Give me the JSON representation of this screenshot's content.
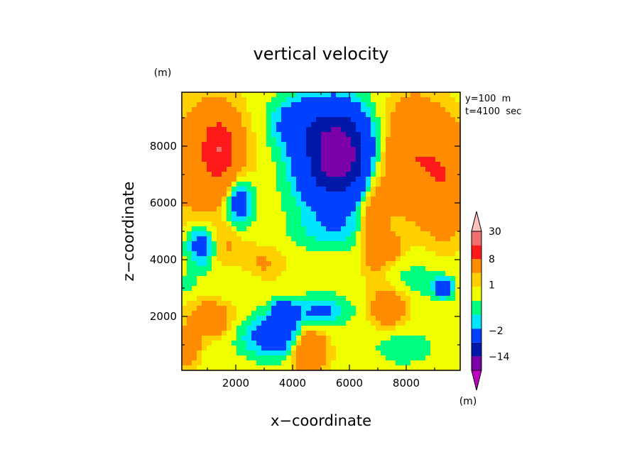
{
  "chart_data": {
    "type": "heatmap",
    "title": "vertical velocity",
    "xlabel": "x−coordinate",
    "ylabel": "z−coordinate",
    "x_unit": "(m)",
    "y_unit": "(m)",
    "xlim": [
      100,
      9900
    ],
    "ylim": [
      100,
      9900
    ],
    "x_ticks": [
      {
        "value": 2000,
        "label": "2000"
      },
      {
        "value": 4000,
        "label": "4000"
      },
      {
        "value": 6000,
        "label": "6000"
      },
      {
        "value": 8000,
        "label": "8000"
      }
    ],
    "y_ticks": [
      {
        "value": 2000,
        "label": "2000"
      },
      {
        "value": 4000,
        "label": "4000"
      },
      {
        "value": 6000,
        "label": "6000"
      },
      {
        "value": 8000,
        "label": "8000"
      }
    ],
    "annotations": [
      "y=100  m",
      "t=4100  sec"
    ],
    "colorbar": {
      "unit": "(m)",
      "levels": [
        -30,
        -14,
        -8,
        -2,
        -1,
        0,
        1,
        2,
        8,
        14,
        30
      ],
      "colors": [
        "#c000c0",
        "#7b00a8",
        "#0018a8",
        "#0040ff",
        "#00e5ff",
        "#00ff7f",
        "#f0ff00",
        "#ffd000",
        "#ff8c00",
        "#ff1a1a",
        "#f07070",
        "#ffc0c0"
      ],
      "labels": [
        {
          "value": 30,
          "label": "30"
        },
        {
          "value": 8,
          "label": "8"
        },
        {
          "value": 1,
          "label": "1"
        },
        {
          "value": -2,
          "label": "−2"
        },
        {
          "value": -14,
          "label": "−14"
        }
      ],
      "extend": "both"
    },
    "field": {
      "background": 0.5,
      "blobs": [
        {
          "x": 5600,
          "z": 7800,
          "sx": 900,
          "sz": 1300,
          "a": -17
        },
        {
          "x": 5300,
          "z": 7300,
          "sx": 1300,
          "sz": 1900,
          "a": -5
        },
        {
          "x": 4200,
          "z": 8800,
          "sx": 900,
          "sz": 900,
          "a": -4
        },
        {
          "x": 1400,
          "z": 7900,
          "sx": 600,
          "sz": 1100,
          "a": 11
        },
        {
          "x": 900,
          "z": 7400,
          "sx": 1500,
          "sz": 2200,
          "a": 3
        },
        {
          "x": 8300,
          "z": 7600,
          "sx": 900,
          "sz": 1800,
          "a": 7
        },
        {
          "x": 9400,
          "z": 6800,
          "sx": 700,
          "sz": 1800,
          "a": 6
        },
        {
          "x": 6900,
          "z": 5300,
          "sx": 500,
          "sz": 1700,
          "a": 4
        },
        {
          "x": 7300,
          "z": 4400,
          "sx": 500,
          "sz": 400,
          "a": 5
        },
        {
          "x": 4600,
          "z": 800,
          "sx": 550,
          "sz": 700,
          "a": 7
        },
        {
          "x": 1100,
          "z": 1900,
          "sx": 700,
          "sz": 600,
          "a": 4
        },
        {
          "x": 7400,
          "z": 2300,
          "sx": 600,
          "sz": 600,
          "a": 4
        },
        {
          "x": 300,
          "z": 900,
          "sx": 400,
          "sz": 600,
          "a": 4
        },
        {
          "x": 3000,
          "z": 3800,
          "sx": 700,
          "sz": 600,
          "a": 1.8
        },
        {
          "x": 3400,
          "z": 1300,
          "sx": 1100,
          "sz": 700,
          "a": -4.5
        },
        {
          "x": 5000,
          "z": 2200,
          "sx": 900,
          "sz": 500,
          "a": -3
        },
        {
          "x": 3700,
          "z": 2100,
          "sx": 400,
          "sz": 400,
          "a": -6
        },
        {
          "x": 2100,
          "z": 6000,
          "sx": 500,
          "sz": 900,
          "a": -5
        },
        {
          "x": 800,
          "z": 4500,
          "sx": 500,
          "sz": 700,
          "a": -4.5
        },
        {
          "x": 1700,
          "z": 4500,
          "sx": 700,
          "sz": 900,
          "a": 1.5
        },
        {
          "x": 2000,
          "z": 3300,
          "sx": 1200,
          "sz": 500,
          "a": -0.8
        },
        {
          "x": 8500,
          "z": 3300,
          "sx": 1200,
          "sz": 700,
          "a": -0.9
        },
        {
          "x": 7900,
          "z": 900,
          "sx": 1000,
          "sz": 600,
          "a": -1.2
        },
        {
          "x": 5500,
          "z": 5000,
          "sx": 1400,
          "sz": 500,
          "a": -1.2
        },
        {
          "x": 9300,
          "z": 3000,
          "sx": 300,
          "sz": 300,
          "a": -6
        },
        {
          "x": 300,
          "z": 3200,
          "sx": 300,
          "sz": 400,
          "a": -0.8
        }
      ]
    }
  }
}
